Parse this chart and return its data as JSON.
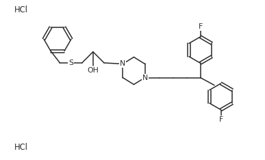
{
  "bg_color": "#ffffff",
  "line_color": "#2a2a2a",
  "lw": 1.1,
  "fs": 7.8,
  "xlim": [
    0,
    10
  ],
  "ylim": [
    0,
    6
  ]
}
